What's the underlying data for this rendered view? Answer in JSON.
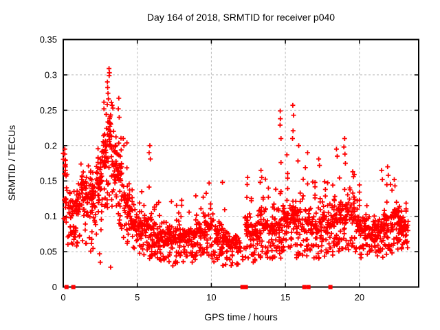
{
  "chart_data": {
    "type": "scatter",
    "title": "Day 164 of 2018, SRMTID for receiver p040",
    "xlabel": "GPS time / hours",
    "ylabel": "SRMTID / TECUs",
    "xlim": [
      0,
      24
    ],
    "ylim": [
      0,
      0.35
    ],
    "xtick_values": [
      0,
      5,
      10,
      15,
      20
    ],
    "xtick_labels": [
      "0",
      "5",
      "10",
      "15",
      "20"
    ],
    "ytick_values": [
      0,
      0.05,
      0.1,
      0.15,
      0.2,
      0.25,
      0.3,
      0.35
    ],
    "ytick_labels": [
      "0",
      "0.05",
      "0.1",
      "0.15",
      "0.2",
      "0.25",
      "0.3",
      "0.35"
    ],
    "grid": true,
    "legend": false,
    "marker": {
      "shape": "plus",
      "color": "#ff0000",
      "size": 7
    },
    "grid_color": "#b8b8b8",
    "axis_color": "#000000",
    "baseline_square_marker": {
      "shape": "square",
      "color": "#ff0000",
      "size": 6
    },
    "baseline_squares_x": [
      0.22,
      0.68,
      12.1,
      12.33,
      16.28,
      16.56,
      18.04
    ],
    "seed": 164,
    "bins_format": [
      "t_start",
      "t_end",
      "y_min",
      "y_band_low",
      "y_band_high",
      "y_max",
      "n_points"
    ],
    "bins": [
      [
        0.0,
        0.3,
        0.09,
        0.1,
        0.17,
        0.19,
        22
      ],
      [
        0.3,
        0.7,
        0.06,
        0.08,
        0.13,
        0.17,
        30
      ],
      [
        0.7,
        1.2,
        0.05,
        0.09,
        0.15,
        0.175,
        45
      ],
      [
        1.2,
        1.7,
        0.06,
        0.11,
        0.16,
        0.18,
        50
      ],
      [
        1.7,
        2.2,
        0.05,
        0.1,
        0.16,
        0.18,
        55
      ],
      [
        2.2,
        2.6,
        0.07,
        0.13,
        0.18,
        0.21,
        50
      ],
      [
        2.6,
        3.0,
        0.1,
        0.15,
        0.23,
        0.28,
        50
      ],
      [
        3.0,
        3.25,
        0.12,
        0.17,
        0.26,
        0.3,
        28
      ],
      [
        3.25,
        3.6,
        0.1,
        0.14,
        0.22,
        0.27,
        38
      ],
      [
        3.6,
        4.0,
        0.08,
        0.12,
        0.2,
        0.25,
        40
      ],
      [
        4.0,
        4.5,
        0.06,
        0.09,
        0.16,
        0.21,
        45
      ],
      [
        4.5,
        5.0,
        0.05,
        0.07,
        0.12,
        0.165,
        40
      ],
      [
        5.0,
        5.5,
        0.04,
        0.06,
        0.11,
        0.15,
        40
      ],
      [
        5.5,
        6.0,
        0.04,
        0.06,
        0.11,
        0.185,
        40
      ],
      [
        6.0,
        6.5,
        0.035,
        0.05,
        0.09,
        0.13,
        40
      ],
      [
        6.5,
        7.0,
        0.035,
        0.05,
        0.09,
        0.12,
        40
      ],
      [
        7.0,
        7.5,
        0.03,
        0.05,
        0.09,
        0.135,
        42
      ],
      [
        7.5,
        8.0,
        0.03,
        0.05,
        0.09,
        0.12,
        42
      ],
      [
        8.0,
        8.5,
        0.03,
        0.05,
        0.09,
        0.125,
        42
      ],
      [
        8.5,
        9.0,
        0.035,
        0.05,
        0.09,
        0.13,
        42
      ],
      [
        9.0,
        9.5,
        0.04,
        0.06,
        0.1,
        0.135,
        42
      ],
      [
        9.5,
        10.1,
        0.04,
        0.06,
        0.11,
        0.14,
        45
      ],
      [
        10.1,
        10.6,
        0.035,
        0.05,
        0.1,
        0.14,
        40
      ],
      [
        10.6,
        11.1,
        0.03,
        0.05,
        0.09,
        0.13,
        40
      ],
      [
        11.1,
        11.6,
        0.03,
        0.04,
        0.08,
        0.12,
        34
      ],
      [
        11.6,
        11.95,
        0.03,
        0.04,
        0.08,
        0.1,
        22
      ],
      [
        11.95,
        12.25,
        0.03,
        0.04,
        0.06,
        0.07,
        4
      ],
      [
        12.25,
        12.7,
        0.04,
        0.06,
        0.12,
        0.15,
        35
      ],
      [
        12.7,
        13.2,
        0.035,
        0.05,
        0.1,
        0.13,
        40
      ],
      [
        13.2,
        13.7,
        0.04,
        0.06,
        0.12,
        0.155,
        42
      ],
      [
        13.7,
        14.2,
        0.04,
        0.06,
        0.11,
        0.14,
        42
      ],
      [
        14.2,
        14.7,
        0.04,
        0.06,
        0.12,
        0.175,
        42
      ],
      [
        14.7,
        15.2,
        0.05,
        0.07,
        0.13,
        0.19,
        45
      ],
      [
        15.2,
        15.7,
        0.05,
        0.07,
        0.13,
        0.185,
        42
      ],
      [
        15.7,
        16.2,
        0.04,
        0.06,
        0.12,
        0.185,
        40
      ],
      [
        16.2,
        16.7,
        0.04,
        0.06,
        0.12,
        0.175,
        38
      ],
      [
        16.7,
        17.2,
        0.04,
        0.06,
        0.11,
        0.15,
        40
      ],
      [
        17.2,
        17.7,
        0.04,
        0.06,
        0.12,
        0.17,
        40
      ],
      [
        17.7,
        18.2,
        0.04,
        0.06,
        0.11,
        0.155,
        40
      ],
      [
        18.2,
        18.7,
        0.045,
        0.07,
        0.13,
        0.18,
        42
      ],
      [
        18.7,
        19.2,
        0.05,
        0.07,
        0.13,
        0.19,
        42
      ],
      [
        19.2,
        19.7,
        0.05,
        0.07,
        0.14,
        0.17,
        42
      ],
      [
        19.7,
        20.2,
        0.04,
        0.06,
        0.11,
        0.15,
        40
      ],
      [
        20.2,
        20.7,
        0.04,
        0.06,
        0.11,
        0.14,
        40
      ],
      [
        20.7,
        21.2,
        0.04,
        0.06,
        0.1,
        0.13,
        40
      ],
      [
        21.2,
        21.7,
        0.04,
        0.06,
        0.11,
        0.15,
        40
      ],
      [
        21.7,
        22.2,
        0.045,
        0.06,
        0.12,
        0.16,
        42
      ],
      [
        22.2,
        22.7,
        0.05,
        0.07,
        0.12,
        0.155,
        45
      ],
      [
        22.7,
        23.3,
        0.05,
        0.065,
        0.105,
        0.135,
        55
      ]
    ],
    "outlier_points": [
      [
        0.08,
        0.16
      ],
      [
        0.1,
        0.195
      ],
      [
        0.1,
        0.188
      ],
      [
        0.12,
        0.18
      ],
      [
        0.12,
        0.172
      ],
      [
        0.15,
        0.165
      ],
      [
        2.45,
        0.047
      ],
      [
        2.5,
        0.035
      ],
      [
        3.2,
        0.028
      ],
      [
        3.09,
        0.309
      ],
      [
        3.12,
        0.303
      ],
      [
        3.1,
        0.299
      ],
      [
        2.98,
        0.29
      ],
      [
        3.0,
        0.282
      ],
      [
        3.02,
        0.274
      ],
      [
        3.05,
        0.266
      ],
      [
        2.97,
        0.258
      ],
      [
        3.3,
        0.257
      ],
      [
        3.35,
        0.253
      ],
      [
        3.75,
        0.267
      ],
      [
        3.72,
        0.252
      ],
      [
        3.78,
        0.24
      ],
      [
        4.05,
        0.21
      ],
      [
        4.1,
        0.2
      ],
      [
        5.85,
        0.2
      ],
      [
        5.8,
        0.19
      ],
      [
        5.88,
        0.181
      ],
      [
        7.4,
        0.03
      ],
      [
        9.85,
        0.147
      ],
      [
        10.75,
        0.148
      ],
      [
        12.45,
        0.155
      ],
      [
        12.42,
        0.145
      ],
      [
        13.35,
        0.165
      ],
      [
        13.4,
        0.155
      ],
      [
        13.3,
        0.148
      ],
      [
        14.65,
        0.249
      ],
      [
        14.66,
        0.238
      ],
      [
        14.64,
        0.229
      ],
      [
        14.7,
        0.21
      ],
      [
        14.7,
        0.176
      ],
      [
        15.5,
        0.257
      ],
      [
        15.55,
        0.243
      ],
      [
        15.52,
        0.221
      ],
      [
        15.48,
        0.21
      ],
      [
        15.1,
        0.187
      ],
      [
        15.9,
        0.2
      ],
      [
        16.5,
        0.19
      ],
      [
        17.25,
        0.181
      ],
      [
        17.3,
        0.172
      ],
      [
        18.45,
        0.195
      ],
      [
        18.5,
        0.185
      ],
      [
        19.0,
        0.21
      ],
      [
        18.95,
        0.198
      ],
      [
        19.02,
        0.188
      ],
      [
        19.05,
        0.175
      ],
      [
        19.55,
        0.163
      ],
      [
        19.6,
        0.156
      ],
      [
        21.5,
        0.165
      ],
      [
        21.55,
        0.152
      ],
      [
        21.9,
        0.17
      ],
      [
        21.95,
        0.158
      ],
      [
        22.1,
        0.145
      ],
      [
        22.35,
        0.152
      ],
      [
        22.4,
        0.143
      ]
    ]
  }
}
